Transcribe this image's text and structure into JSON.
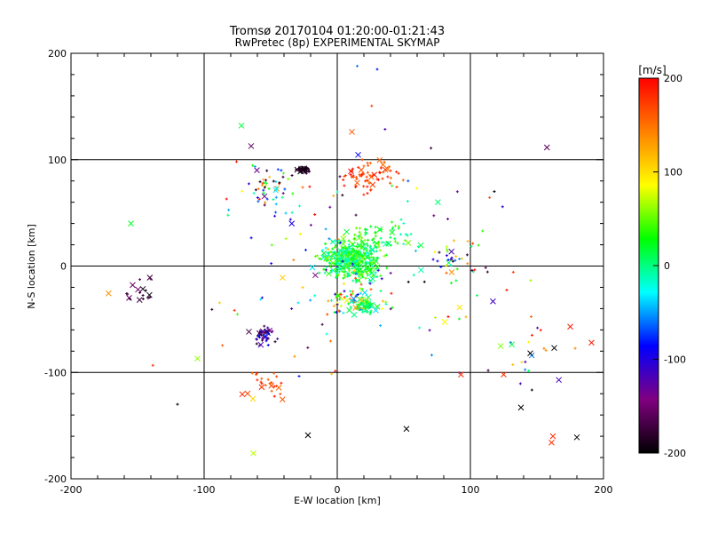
{
  "chart_data": {
    "type": "scatter",
    "title": "Tromsø 20170104 01:20:00-01:21:43",
    "subtitle": "RwPretec (8p) EXPERIMENTAL SKYMAP",
    "xlabel": "E-W location [km]",
    "ylabel": "N-S location [km]",
    "xlim": [
      -200,
      200
    ],
    "ylim": [
      -200,
      200
    ],
    "x_ticks": [
      -200,
      -100,
      0,
      100,
      200
    ],
    "y_ticks": [
      -200,
      -100,
      0,
      100,
      200
    ],
    "grid": true,
    "colorbar": {
      "label": "[m/s]",
      "range": [
        -200,
        200
      ],
      "ticks": [
        200,
        100,
        0,
        -100,
        -200
      ],
      "colors": [
        "#000000",
        "#800080",
        "#0000ff",
        "#00ffff",
        "#00ff00",
        "#ffff00",
        "#ff8000",
        "#ff0000"
      ]
    },
    "markers": [
      "plus",
      "x"
    ],
    "clusters": [
      {
        "cx": 10,
        "cy": 5,
        "sx": 14,
        "sy": 12,
        "n": 420,
        "vmin": -30,
        "vmax": 60
      },
      {
        "cx": 30,
        "cy": 25,
        "sx": 18,
        "sy": 12,
        "n": 80,
        "vmin": -20,
        "vmax": 60
      },
      {
        "cx": 25,
        "cy": 85,
        "sx": 14,
        "sy": 10,
        "n": 70,
        "vmin": 150,
        "vmax": 200
      },
      {
        "cx": -25,
        "cy": 90,
        "sx": 4,
        "sy": 2,
        "n": 35,
        "vmin": -200,
        "vmax": -170
      },
      {
        "cx": -50,
        "cy": 75,
        "sx": 12,
        "sy": 12,
        "n": 45,
        "vmin": -200,
        "vmax": 200
      },
      {
        "cx": -55,
        "cy": -65,
        "sx": 6,
        "sy": 6,
        "n": 45,
        "vmin": -200,
        "vmax": -80
      },
      {
        "cx": -55,
        "cy": -110,
        "sx": 10,
        "sy": 10,
        "n": 25,
        "vmin": 150,
        "vmax": 200
      },
      {
        "cx": 20,
        "cy": -38,
        "sx": 7,
        "sy": 5,
        "n": 60,
        "vmin": -10,
        "vmax": 30
      },
      {
        "cx": 15,
        "cy": -30,
        "sx": 14,
        "sy": 10,
        "n": 50,
        "vmin": -120,
        "vmax": 200
      },
      {
        "cx": 90,
        "cy": 10,
        "sx": 12,
        "sy": 14,
        "n": 35,
        "vmin": -200,
        "vmax": 200
      },
      {
        "cx": -150,
        "cy": -25,
        "sx": 10,
        "sy": 14,
        "n": 18,
        "vmin": -200,
        "vmax": -150
      },
      {
        "cx": 140,
        "cy": -70,
        "sx": 25,
        "sy": 40,
        "n": 25,
        "vmin": -200,
        "vmax": 200
      },
      {
        "cx": 0,
        "cy": 0,
        "sx": 90,
        "sy": 80,
        "n": 140,
        "vmin": -200,
        "vmax": 200
      }
    ],
    "points": [
      {
        "x": -155,
        "y": 40,
        "v": 20,
        "m": "x"
      },
      {
        "x": -72,
        "y": 132,
        "v": 15,
        "m": "x"
      },
      {
        "x": 15,
        "y": 188,
        "v": -60,
        "m": "plus"
      },
      {
        "x": 30,
        "y": 185,
        "v": -80,
        "m": "plus"
      },
      {
        "x": -105,
        "y": -87,
        "v": 60,
        "m": "x"
      },
      {
        "x": -63,
        "y": -176,
        "v": 70,
        "m": "x"
      },
      {
        "x": -120,
        "y": -130,
        "v": -200,
        "m": "plus"
      },
      {
        "x": -22,
        "y": -159,
        "v": -200,
        "m": "x"
      },
      {
        "x": 52,
        "y": -153,
        "v": -200,
        "m": "x"
      },
      {
        "x": 180,
        "y": -161,
        "v": -200,
        "m": "x"
      },
      {
        "x": 162,
        "y": -160,
        "v": 180,
        "m": "x"
      },
      {
        "x": 161,
        "y": -166,
        "v": 180,
        "m": "x"
      },
      {
        "x": 138,
        "y": -133,
        "v": -200,
        "m": "x"
      },
      {
        "x": 191,
        "y": -72,
        "v": 190,
        "m": "x"
      },
      {
        "x": 175,
        "y": -57,
        "v": 190,
        "m": "x"
      },
      {
        "x": 145,
        "y": -82,
        "v": -200,
        "m": "x"
      },
      {
        "x": 163,
        "y": -77,
        "v": -200,
        "m": "x"
      },
      {
        "x": 125,
        "y": -102,
        "v": 180,
        "m": "x"
      },
      {
        "x": 93,
        "y": -102,
        "v": 180,
        "m": "x"
      },
      {
        "x": 118,
        "y": 70,
        "v": -200,
        "m": "plus"
      }
    ]
  }
}
